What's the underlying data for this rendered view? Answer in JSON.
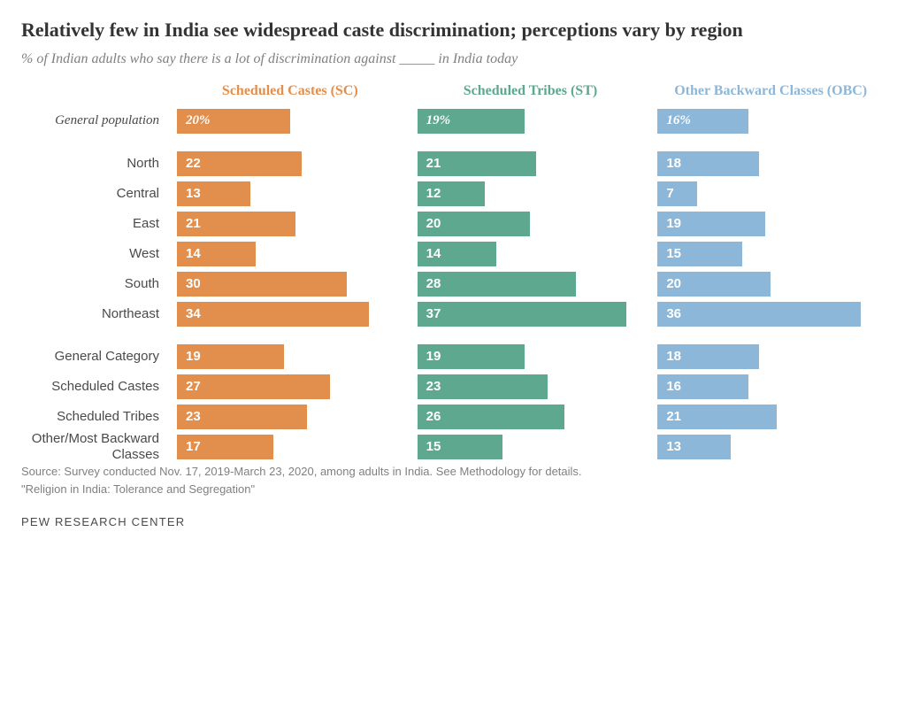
{
  "title": "Relatively few in India see widespread caste discrimination; perceptions vary by region",
  "subtitle": "% of Indian adults who say there is a lot of discrimination against _____ in India today",
  "series": [
    {
      "label": "Scheduled Castes (SC)",
      "color": "#e28f4e"
    },
    {
      "label": "Scheduled Tribes (ST)",
      "color": "#5da88f"
    },
    {
      "label": "Other Backward Classes (OBC)",
      "color": "#8cb7d8"
    }
  ],
  "xmax": 40,
  "bar_text_color": "#ffffff",
  "bar_label_fontsize": 15,
  "header_fontsize": 16,
  "groups": [
    {
      "rows": [
        {
          "label": "General population",
          "italic": true,
          "values": [
            "20%",
            "19%",
            "16%"
          ],
          "nums": [
            20,
            19,
            16
          ]
        }
      ]
    },
    {
      "rows": [
        {
          "label": "North",
          "values": [
            "22",
            "21",
            "18"
          ],
          "nums": [
            22,
            21,
            18
          ]
        },
        {
          "label": "Central",
          "values": [
            "13",
            "12",
            "7"
          ],
          "nums": [
            13,
            12,
            7
          ]
        },
        {
          "label": "East",
          "values": [
            "21",
            "20",
            "19"
          ],
          "nums": [
            21,
            20,
            19
          ]
        },
        {
          "label": "West",
          "values": [
            "14",
            "14",
            "15"
          ],
          "nums": [
            14,
            14,
            15
          ]
        },
        {
          "label": "South",
          "values": [
            "30",
            "28",
            "20"
          ],
          "nums": [
            30,
            28,
            20
          ]
        },
        {
          "label": "Northeast",
          "values": [
            "34",
            "37",
            "36"
          ],
          "nums": [
            34,
            37,
            36
          ]
        }
      ]
    },
    {
      "rows": [
        {
          "label": "General Category",
          "values": [
            "19",
            "19",
            "18"
          ],
          "nums": [
            19,
            19,
            18
          ]
        },
        {
          "label": "Scheduled Castes",
          "values": [
            "27",
            "23",
            "16"
          ],
          "nums": [
            27,
            23,
            16
          ]
        },
        {
          "label": "Scheduled Tribes",
          "values": [
            "23",
            "26",
            "21"
          ],
          "nums": [
            23,
            26,
            21
          ]
        },
        {
          "label": "Other/Most Backward Classes",
          "values": [
            "17",
            "15",
            "13"
          ],
          "nums": [
            17,
            15,
            13
          ]
        }
      ]
    }
  ],
  "source1": "Source: Survey conducted Nov. 17, 2019-March 23, 2020, among adults in India. See Methodology for details.",
  "source2": "\"Religion in India: Tolerance and Segregation\"",
  "footer": "PEW RESEARCH CENTER"
}
